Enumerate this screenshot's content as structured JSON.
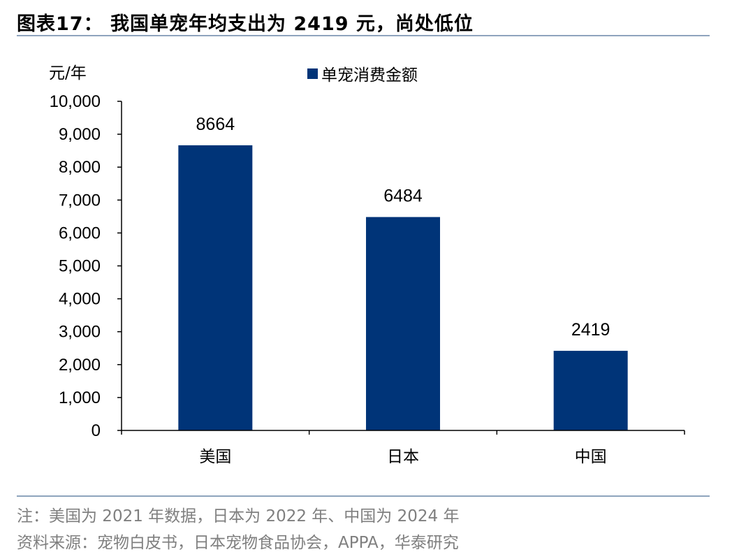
{
  "header": {
    "title": "图表17：  我国单宠年均支出为 2419 元，尚处低位"
  },
  "chart_data": {
    "type": "bar",
    "categories": [
      "美国",
      "日本",
      "中国"
    ],
    "series": [
      {
        "name": "单宠消费金额",
        "values": [
          8664,
          6484,
          2419
        ],
        "color": "#003478"
      }
    ],
    "data_labels": [
      "8664",
      "6484",
      "2419"
    ],
    "y_unit": "元/年",
    "ylim": [
      0,
      10000
    ],
    "yticks": [
      "0",
      "1,000",
      "2,000",
      "3,000",
      "4,000",
      "5,000",
      "6,000",
      "7,000",
      "8,000",
      "9,000",
      "10,000"
    ],
    "grid": false,
    "legend_position": "top"
  },
  "footer": {
    "note": "注：美国为 2021 年数据，日本为 2022 年、中国为 2024 年",
    "source": "资料来源：宠物白皮书，日本宠物食品协会，APPA，华泰研究"
  }
}
